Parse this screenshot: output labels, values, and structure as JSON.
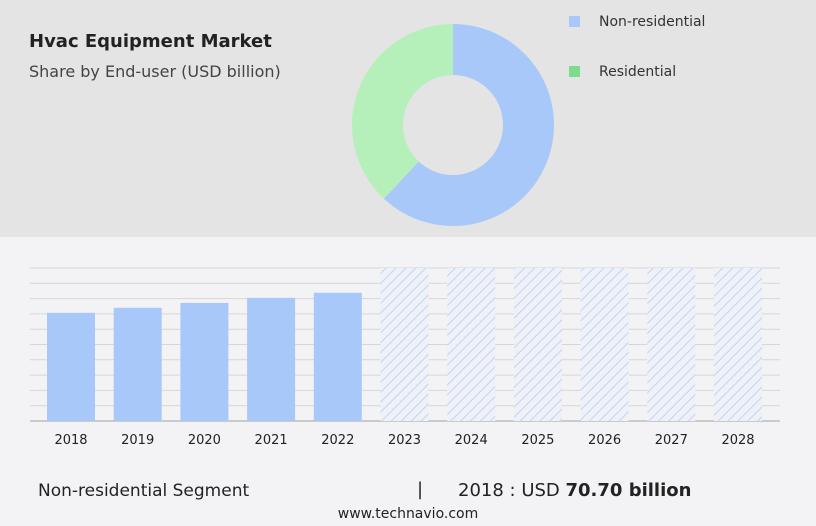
{
  "header": {
    "title": "Hvac Equipment Market",
    "subtitle": "Share by End-user (USD billion)"
  },
  "footer": {
    "segment": "Non-residential Segment",
    "separator": "|",
    "year_prefix": "2018 : USD ",
    "value": "70.70 billion",
    "site": "www.technavio.com"
  },
  "chart_data": [
    {
      "type": "pie",
      "donut": true,
      "legend_placement": "right",
      "slices": [
        {
          "name": "Non-residential",
          "value": 62,
          "color": "#a8c8fa"
        },
        {
          "name": "Residential",
          "value": 38,
          "color": "#b5f0bb"
        }
      ],
      "legend_colors": {
        "Non-residential": "#a8c8fa",
        "Residential": "#7bdc8b"
      }
    },
    {
      "type": "bar",
      "grid": true,
      "ylim": [
        0,
        100
      ],
      "categories": [
        "2018",
        "2019",
        "2020",
        "2021",
        "2022",
        "2023",
        "2024",
        "2025",
        "2026",
        "2027",
        "2028"
      ],
      "values": [
        70.7,
        74.0,
        77.2,
        80.5,
        83.8,
        null,
        null,
        null,
        null,
        null,
        null
      ],
      "forecast": [
        "2023",
        "2024",
        "2025",
        "2026",
        "2027",
        "2028"
      ],
      "color": "#a8c8fa"
    }
  ]
}
